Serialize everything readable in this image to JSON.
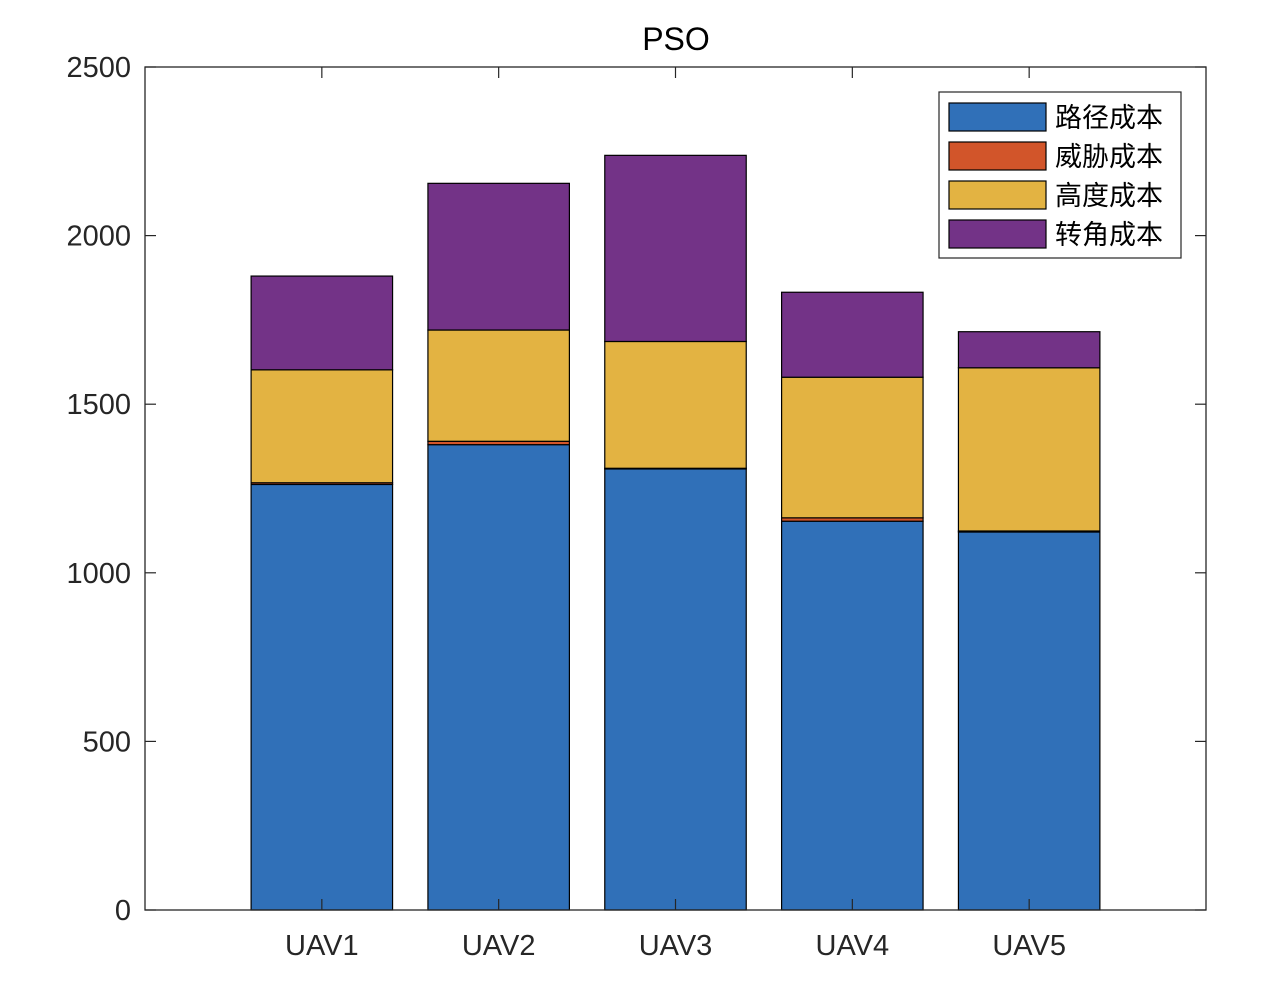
{
  "chart_data": {
    "type": "bar",
    "stacked": true,
    "title": "PSO",
    "xlabel": "",
    "ylabel": "",
    "categories": [
      "UAV1",
      "UAV2",
      "UAV3",
      "UAV4",
      "UAV5"
    ],
    "ylim": [
      0,
      2500
    ],
    "yticks": [
      0,
      500,
      1000,
      1500,
      2000,
      2500
    ],
    "grid": false,
    "legend_position": "top-right",
    "series": [
      {
        "name": "路径成本",
        "color": "#3070b8",
        "values": [
          1262,
          1380,
          1308,
          1153,
          1121
        ]
      },
      {
        "name": "威胁成本",
        "color": "#d2552a",
        "values": [
          5,
          10,
          2,
          10,
          3
        ]
      },
      {
        "name": "高度成本",
        "color": "#e3b342",
        "values": [
          335,
          330,
          376,
          417,
          484
        ]
      },
      {
        "name": "转角成本",
        "color": "#733387",
        "values": [
          278,
          435,
          552,
          252,
          107
        ]
      }
    ]
  }
}
